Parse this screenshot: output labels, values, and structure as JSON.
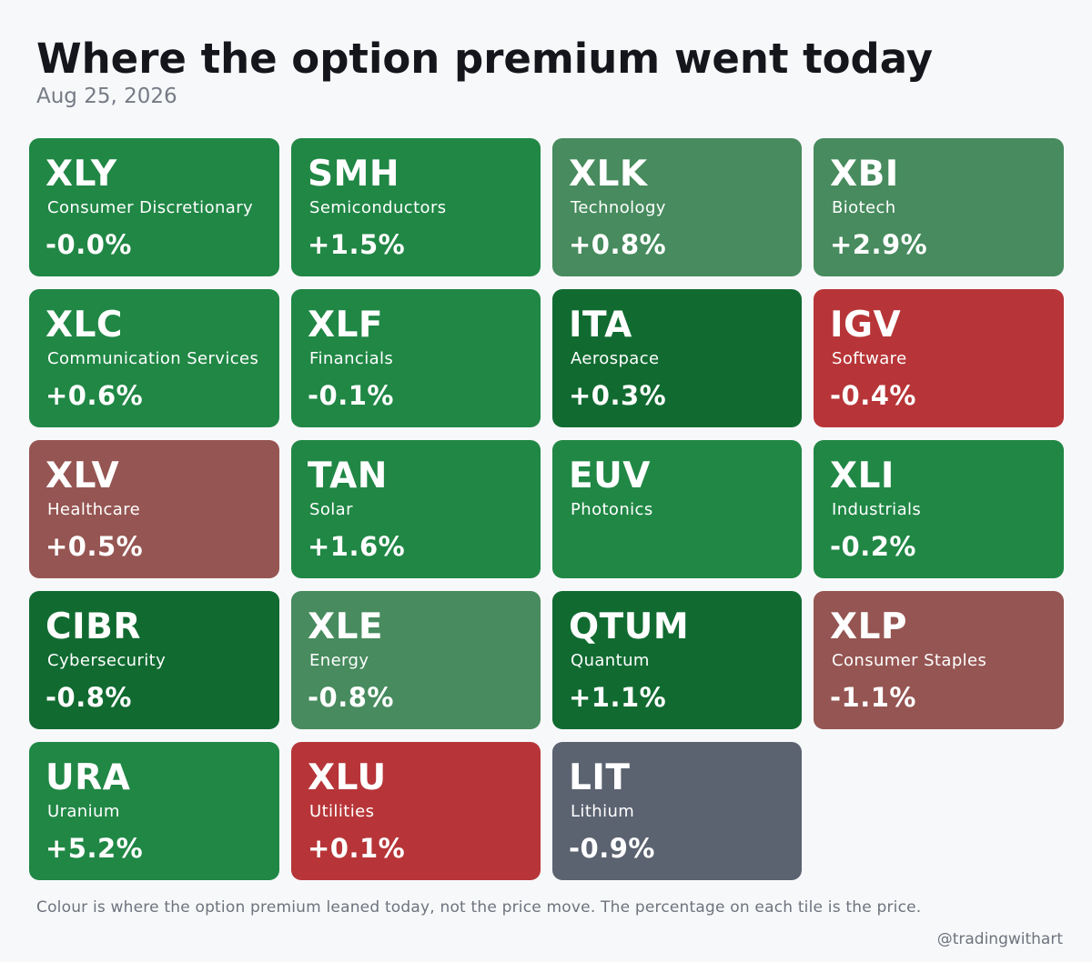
{
  "title": "Where the option premium went today",
  "date": "Aug 25, 2026",
  "footnote": "Colour is where the option premium leaned today, not the price move. The percentage on each tile is the price.",
  "handle": "@tradingwithart",
  "colors": {
    "green": "#208745",
    "light_green": "#478b5e",
    "dark_green": "#116b31",
    "red": "#b73538",
    "muted_red": "#955552",
    "gray": "#5b6270"
  },
  "tiles": [
    {
      "ticker": "XLY",
      "sector": "Consumer Discretionary",
      "change": "-0.0%",
      "color": "green"
    },
    {
      "ticker": "SMH",
      "sector": "Semiconductors",
      "change": "+1.5%",
      "color": "green"
    },
    {
      "ticker": "XLK",
      "sector": "Technology",
      "change": "+0.8%",
      "color": "light_green"
    },
    {
      "ticker": "XBI",
      "sector": "Biotech",
      "change": "+2.9%",
      "color": "light_green"
    },
    {
      "ticker": "XLC",
      "sector": "Communication Services",
      "change": "+0.6%",
      "color": "green"
    },
    {
      "ticker": "XLF",
      "sector": "Financials",
      "change": "-0.1%",
      "color": "green"
    },
    {
      "ticker": "ITA",
      "sector": "Aerospace",
      "change": "+0.3%",
      "color": "dark_green"
    },
    {
      "ticker": "IGV",
      "sector": "Software",
      "change": "-0.4%",
      "color": "red"
    },
    {
      "ticker": "XLV",
      "sector": "Healthcare",
      "change": "+0.5%",
      "color": "muted_red"
    },
    {
      "ticker": "TAN",
      "sector": "Solar",
      "change": "+1.6%",
      "color": "green"
    },
    {
      "ticker": "EUV",
      "sector": "Photonics",
      "change": "",
      "color": "green"
    },
    {
      "ticker": "XLI",
      "sector": "Industrials",
      "change": "-0.2%",
      "color": "green"
    },
    {
      "ticker": "CIBR",
      "sector": "Cybersecurity",
      "change": "-0.8%",
      "color": "dark_green"
    },
    {
      "ticker": "XLE",
      "sector": "Energy",
      "change": "-0.8%",
      "color": "light_green"
    },
    {
      "ticker": "QTUM",
      "sector": "Quantum",
      "change": "+1.1%",
      "color": "dark_green"
    },
    {
      "ticker": "XLP",
      "sector": "Consumer Staples",
      "change": "-1.1%",
      "color": "muted_red"
    },
    {
      "ticker": "URA",
      "sector": "Uranium",
      "change": "+5.2%",
      "color": "green"
    },
    {
      "ticker": "XLU",
      "sector": "Utilities",
      "change": "+0.1%",
      "color": "red"
    },
    {
      "ticker": "LIT",
      "sector": "Lithium",
      "change": "-0.9%",
      "color": "gray"
    }
  ]
}
